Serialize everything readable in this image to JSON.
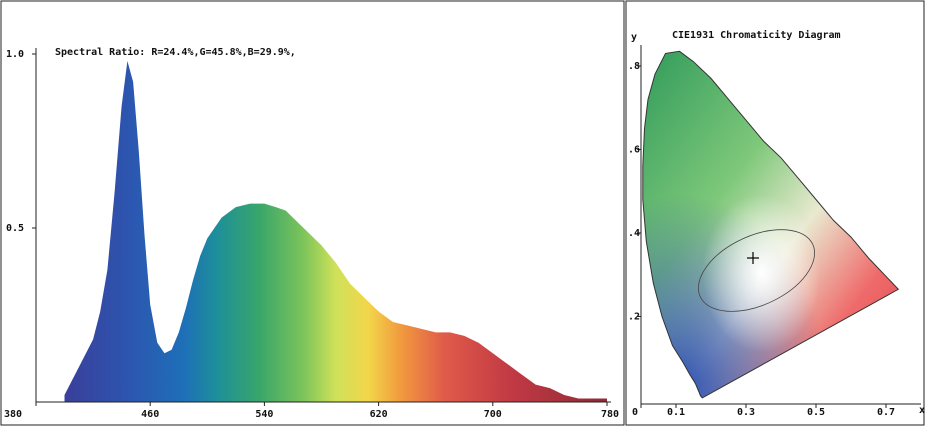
{
  "spectrum": {
    "chart_data": {
      "type": "area",
      "title": "Spectral Ratio:  R=24.4%,G=45.8%,B=29.9%,",
      "xlabel": "",
      "ylabel": "",
      "xlim": [
        380,
        780
      ],
      "ylim": [
        0,
        1.0
      ],
      "x_ticks": [
        380,
        460,
        540,
        620,
        700,
        780
      ],
      "y_ticks": [
        {
          "value": 0.5,
          "label": "0.5"
        },
        {
          "value": 1.0,
          "label": "1.0"
        }
      ],
      "grid": false,
      "series": [
        {
          "x": [
            400,
            410,
            420,
            425,
            430,
            435,
            440,
            444,
            448,
            452,
            456,
            460,
            465,
            470,
            475,
            480,
            485,
            490,
            495,
            500,
            510,
            520,
            530,
            540,
            548,
            555,
            560,
            570,
            580,
            590,
            600,
            610,
            620,
            630,
            640,
            650,
            660,
            670,
            680,
            690,
            700,
            710,
            720,
            730,
            740,
            750,
            760,
            770,
            780
          ],
          "values": [
            0.02,
            0.1,
            0.18,
            0.26,
            0.38,
            0.6,
            0.85,
            0.98,
            0.92,
            0.72,
            0.48,
            0.28,
            0.17,
            0.14,
            0.15,
            0.2,
            0.27,
            0.35,
            0.42,
            0.47,
            0.53,
            0.56,
            0.57,
            0.57,
            0.56,
            0.55,
            0.53,
            0.49,
            0.45,
            0.4,
            0.34,
            0.3,
            0.26,
            0.23,
            0.22,
            0.21,
            0.2,
            0.2,
            0.19,
            0.17,
            0.14,
            0.11,
            0.08,
            0.05,
            0.04,
            0.02,
            0.01,
            0.01,
            0.01
          ]
        }
      ]
    }
  },
  "cie": {
    "chart_data": {
      "type": "scatter",
      "title": "CIE1931 Chromaticity Diagram",
      "ylabel": "y",
      "xlabel": "x",
      "xlim": [
        0,
        0.8
      ],
      "ylim": [
        0,
        0.85
      ],
      "x_ticks": [
        {
          "value": 0,
          "label": "0"
        },
        {
          "value": 0.1,
          "label": "0.1"
        },
        {
          "value": 0.3,
          "label": "0.3"
        },
        {
          "value": 0.5,
          "label": "0.5"
        },
        {
          "value": 0.7,
          "label": "0.7"
        }
      ],
      "y_ticks": [
        {
          "value": 0.2,
          "label": ".2"
        },
        {
          "value": 0.4,
          "label": ".4"
        },
        {
          "value": 0.6,
          "label": ".6"
        },
        {
          "value": 0.8,
          "label": ".8"
        }
      ],
      "locus": [
        [
          0.175,
          0.005
        ],
        [
          0.17,
          0.01
        ],
        [
          0.165,
          0.02
        ],
        [
          0.155,
          0.04
        ],
        [
          0.14,
          0.06
        ],
        [
          0.12,
          0.09
        ],
        [
          0.09,
          0.13
        ],
        [
          0.06,
          0.2
        ],
        [
          0.035,
          0.28
        ],
        [
          0.015,
          0.38
        ],
        [
          0.005,
          0.48
        ],
        [
          0.005,
          0.56
        ],
        [
          0.01,
          0.65
        ],
        [
          0.02,
          0.72
        ],
        [
          0.04,
          0.78
        ],
        [
          0.07,
          0.83
        ],
        [
          0.11,
          0.835
        ],
        [
          0.15,
          0.81
        ],
        [
          0.2,
          0.77
        ],
        [
          0.25,
          0.72
        ],
        [
          0.3,
          0.67
        ],
        [
          0.35,
          0.62
        ],
        [
          0.4,
          0.58
        ],
        [
          0.45,
          0.53
        ],
        [
          0.5,
          0.48
        ],
        [
          0.55,
          0.43
        ],
        [
          0.6,
          0.39
        ],
        [
          0.65,
          0.34
        ],
        [
          0.735,
          0.265
        ]
      ],
      "measured_point": {
        "x": 0.32,
        "y": 0.34
      }
    }
  }
}
